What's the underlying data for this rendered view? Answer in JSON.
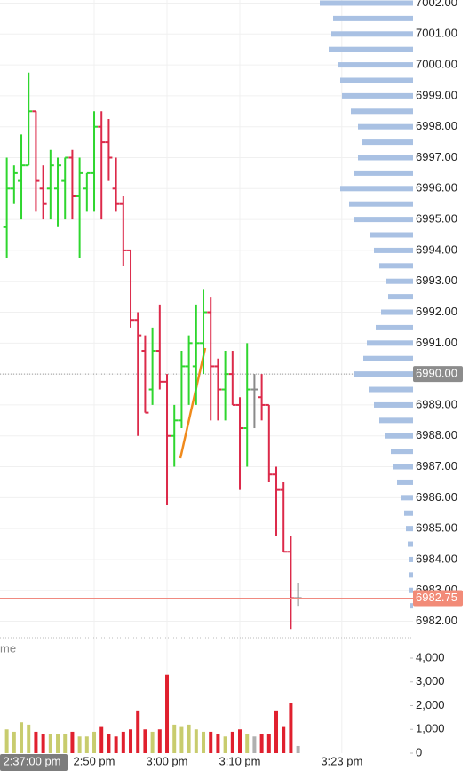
{
  "chart_data": [
    {
      "type": "ohlc",
      "x": [
        0,
        1,
        2,
        3,
        4,
        5,
        6,
        7,
        8,
        9,
        10,
        11,
        12,
        13,
        14,
        15,
        16,
        17,
        18,
        19,
        20,
        21,
        22,
        23,
        24,
        25,
        26,
        27,
        28,
        29,
        30,
        31,
        32,
        33,
        34,
        35,
        36,
        37,
        38,
        39,
        40
      ],
      "open": [
        6994.75,
        6996,
        6996.25,
        6996.75,
        6998.5,
        6996,
        6996,
        6996,
        6996.25,
        6997,
        6995.75,
        6996,
        6996.5,
        6998,
        6997.5,
        6996,
        6995.5,
        6994,
        6991.75,
        6990.75,
        6989.5,
        6990.75,
        6989.75,
        6988,
        6988.5,
        6990.25,
        6990.25,
        6991,
        6992,
        6990.25,
        6989.5,
        6990,
        6989,
        6988.25,
        6989.5,
        6989.25,
        6989,
        6986.75,
        6986.25,
        6984.25,
        6982.75
      ],
      "high": [
        6997,
        6996.75,
        6997.75,
        6999.75,
        6998.5,
        6996.75,
        6997.25,
        6997,
        6997,
        6997.25,
        6997,
        6996.5,
        6998.5,
        6998.5,
        6998.25,
        6997,
        6995.75,
        6994,
        6992,
        6991.25,
        6991.5,
        6992.25,
        6990,
        6989,
        6990.75,
        6991.25,
        6992.25,
        6992.75,
        6992.5,
        6990.5,
        6990.75,
        6990.75,
        6989.25,
        6991,
        6990,
        6990,
        6989,
        6987,
        6986.5,
        6984.75,
        6983.25
      ],
      "low": [
        6993.75,
        6995.5,
        6995,
        6996.75,
        6995.25,
        6995,
        6995,
        6994.75,
        6995,
        6995,
        6993.75,
        6995.25,
        6995.25,
        6995,
        6996.25,
        6995.25,
        6993.5,
        6991.5,
        6988,
        6988.75,
        6989,
        6989.5,
        6985.75,
        6987,
        6988.25,
        6989,
        6989,
        6990,
        6988.5,
        6988.5,
        6988.5,
        6989,
        6986.25,
        6987,
        6988.25,
        6988.5,
        6986.5,
        6984.75,
        6984.25,
        6981.75,
        6982.5
      ],
      "close": [
        6996,
        6996.5,
        6996.75,
        6998.5,
        6996.25,
        6995.5,
        6996.75,
        6996.75,
        6997,
        6995.75,
        6996.5,
        6996.5,
        6998,
        6997.5,
        6997,
        6995.5,
        6994,
        6991.75,
        6991.25,
        6988.75,
        6990.75,
        6989.75,
        6988,
        6988.5,
        6990.25,
        6991,
        6991,
        6992,
        6990.25,
        6989.5,
        6990,
        6989,
        6988.25,
        6989.5,
        6989.5,
        6989,
        6986.75,
        6986.25,
        6984.25,
        6982.75,
        6982.75
      ],
      "up_color": "#2fd62f",
      "down_color": "#dc2a4a",
      "flat_color": "#8a8a8a",
      "xlim": [
        -0.93,
        55.78
      ],
      "ylim": [
        6981.47,
        7002.1
      ],
      "yticks": [
        {
          "value": 6982,
          "label": "6982.00"
        },
        {
          "value": 6983,
          "label": "6983.00"
        },
        {
          "value": 6984,
          "label": "6984.00"
        },
        {
          "value": 6985,
          "label": "6985.00"
        },
        {
          "value": 6986,
          "label": "6986.00"
        },
        {
          "value": 6987,
          "label": "6987.00"
        },
        {
          "value": 6988,
          "label": "6988.00"
        },
        {
          "value": 6989,
          "label": "6989.00"
        },
        {
          "value": 6990,
          "label": "6990.00",
          "highlight": true
        },
        {
          "value": 6991,
          "label": "6991.00"
        },
        {
          "value": 6992,
          "label": "6992.00"
        },
        {
          "value": 6993,
          "label": "6993.00"
        },
        {
          "value": 6994,
          "label": "6994.00"
        },
        {
          "value": 6995,
          "label": "6995.00"
        },
        {
          "value": 6996,
          "label": "6996.00"
        },
        {
          "value": 6997,
          "label": "6997.00"
        },
        {
          "value": 6998,
          "label": "6998.00"
        },
        {
          "value": 6999,
          "label": "6999.00"
        },
        {
          "value": 7000,
          "label": "7000.00"
        },
        {
          "value": 7001,
          "label": "7001.00"
        },
        {
          "value": 7002,
          "label": "7002.00"
        }
      ],
      "last_price": {
        "value": 6982.75,
        "label": "6982.75"
      },
      "grid": true,
      "profile": {
        "color": "#a9c1e3",
        "prices": [
          7002,
          7001.5,
          7001,
          7000.5,
          7000,
          6999.5,
          6999,
          6998.5,
          6998,
          6997.5,
          6997,
          6996.5,
          6996,
          6995.5,
          6995,
          6994.5,
          6994,
          6993.5,
          6993,
          6992.5,
          6992,
          6991.5,
          6991,
          6990.5,
          6990,
          6989.5,
          6989,
          6988.5,
          6988,
          6987.5,
          6987,
          6986.5,
          6986,
          6985.5,
          6985,
          6984.5,
          6984,
          6983.5,
          6983,
          6982.5
        ],
        "values": [
          105,
          90,
          92,
          95,
          85,
          82,
          80,
          70,
          62,
          58,
          62,
          66,
          82,
          72,
          66,
          48,
          44,
          38,
          30,
          28,
          36,
          42,
          52,
          56,
          66,
          50,
          44,
          38,
          32,
          25,
          22,
          18,
          14,
          10,
          8,
          6,
          5,
          5,
          4,
          3
        ]
      }
    },
    {
      "type": "bar",
      "title": "me",
      "values": [
        1000,
        900,
        1300,
        1200,
        900,
        800,
        800,
        800,
        800,
        900,
        700,
        700,
        900,
        1100,
        800,
        700,
        900,
        1000,
        1800,
        1000,
        900,
        1000,
        3300,
        1200,
        1100,
        1200,
        1000,
        900,
        900,
        800,
        700,
        900,
        1000,
        800,
        700,
        800,
        800,
        1800,
        1100,
        2100,
        300
      ],
      "ylim": [
        0,
        4785
      ],
      "yticks": [
        0,
        {
          "value": 1000,
          "label": "1,000"
        },
        {
          "value": 2000,
          "label": "2,000"
        },
        {
          "value": 3000,
          "label": "3,000"
        },
        {
          "value": 4000,
          "label": "4,000"
        }
      ],
      "xlim": [
        -0.93,
        55.78
      ],
      "xticks": [
        {
          "value": 12,
          "label": "2:50 pm"
        },
        {
          "value": 22,
          "label": "3:00 pm"
        },
        {
          "value": 32,
          "label": "3:10 pm"
        },
        {
          "value": 46,
          "label": "3:23 pm"
        }
      ],
      "crosshair_label": "2:37:00 pm"
    }
  ]
}
